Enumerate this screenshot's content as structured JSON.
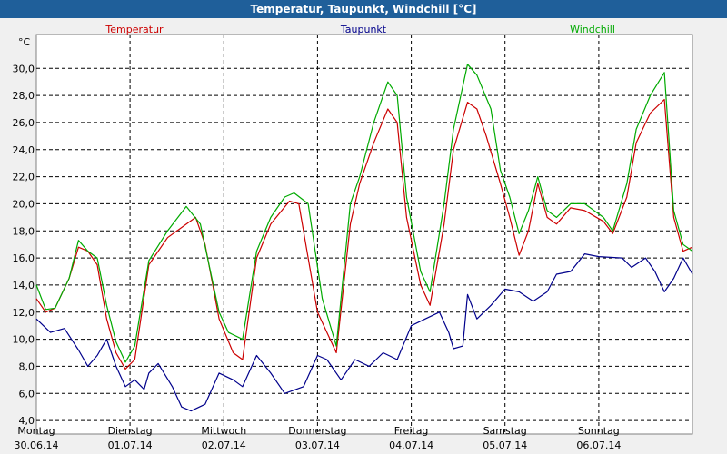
{
  "window": {
    "title": "Temperatur, Taupunkt, Windchill [°C]"
  },
  "chart_data": {
    "type": "line",
    "title": "Temperatur, Taupunkt, Windchill [°C]",
    "ylabel": "°C",
    "ylim": [
      3.0,
      32.5
    ],
    "y_ticks": [
      4.0,
      6.0,
      8.0,
      10.0,
      12.0,
      14.0,
      16.0,
      18.0,
      20.0,
      22.0,
      24.0,
      26.0,
      28.0,
      30.0
    ],
    "y_tick_labels": [
      "4,0",
      "6,0",
      "8,0",
      "10,0",
      "12,0",
      "14,0",
      "16,0",
      "18,0",
      "20,0",
      "22,0",
      "24,0",
      "26,0",
      "28,0",
      "30,0"
    ],
    "xlim": [
      0,
      7
    ],
    "x_ticks": [
      {
        "x": 0,
        "day": "Montag",
        "date": "30.06.14"
      },
      {
        "x": 1,
        "day": "Dienstag",
        "date": "01.07.14"
      },
      {
        "x": 2,
        "day": "Mittwoch",
        "date": "02.07.14"
      },
      {
        "x": 3,
        "day": "Donnerstag",
        "date": "03.07.14"
      },
      {
        "x": 4,
        "day": "Freitag",
        "date": "04.07.14"
      },
      {
        "x": 5,
        "day": "Samstag",
        "date": "05.07.14"
      },
      {
        "x": 6,
        "day": "Sonntag",
        "date": "06.07.14"
      }
    ],
    "grid": true,
    "series": [
      {
        "name": "Temperatur",
        "color": "#cc0000",
        "points": [
          [
            0,
            13.0
          ],
          [
            0.1,
            12.0
          ],
          [
            0.2,
            12.3
          ],
          [
            0.35,
            14.5
          ],
          [
            0.45,
            16.8
          ],
          [
            0.55,
            16.5
          ],
          [
            0.65,
            15.5
          ],
          [
            0.75,
            11.5
          ],
          [
            0.85,
            9.0
          ],
          [
            0.95,
            7.8
          ],
          [
            1.05,
            8.5
          ],
          [
            1.2,
            15.5
          ],
          [
            1.4,
            17.5
          ],
          [
            1.7,
            19.0
          ],
          [
            1.8,
            17.0
          ],
          [
            1.95,
            11.5
          ],
          [
            2.1,
            9.0
          ],
          [
            2.2,
            8.5
          ],
          [
            2.35,
            16.0
          ],
          [
            2.5,
            18.5
          ],
          [
            2.7,
            20.2
          ],
          [
            2.8,
            20.0
          ],
          [
            3.0,
            12.0
          ],
          [
            3.2,
            9.0
          ],
          [
            3.35,
            18.5
          ],
          [
            3.45,
            21.5
          ],
          [
            3.6,
            24.5
          ],
          [
            3.75,
            27.0
          ],
          [
            3.85,
            26.0
          ],
          [
            3.95,
            19.0
          ],
          [
            4.1,
            14.0
          ],
          [
            4.2,
            12.5
          ],
          [
            4.35,
            18.5
          ],
          [
            4.45,
            24.0
          ],
          [
            4.6,
            27.5
          ],
          [
            4.7,
            27.0
          ],
          [
            4.8,
            25.0
          ],
          [
            4.95,
            21.5
          ],
          [
            5.05,
            19.0
          ],
          [
            5.15,
            16.2
          ],
          [
            5.25,
            18.0
          ],
          [
            5.35,
            21.5
          ],
          [
            5.45,
            19.0
          ],
          [
            5.55,
            18.5
          ],
          [
            5.7,
            19.7
          ],
          [
            5.85,
            19.5
          ],
          [
            6.05,
            18.7
          ],
          [
            6.15,
            17.8
          ],
          [
            6.3,
            20.5
          ],
          [
            6.4,
            24.5
          ],
          [
            6.55,
            26.7
          ],
          [
            6.7,
            27.7
          ],
          [
            6.8,
            19.0
          ],
          [
            6.9,
            16.5
          ],
          [
            7.0,
            16.8
          ]
        ]
      },
      {
        "name": "Taupunkt",
        "color": "#00008b",
        "points": [
          [
            0,
            11.5
          ],
          [
            0.15,
            10.5
          ],
          [
            0.3,
            10.8
          ],
          [
            0.45,
            9.2
          ],
          [
            0.55,
            8.0
          ],
          [
            0.65,
            8.8
          ],
          [
            0.75,
            10.0
          ],
          [
            0.85,
            8.0
          ],
          [
            0.95,
            6.5
          ],
          [
            1.05,
            7.0
          ],
          [
            1.15,
            6.3
          ],
          [
            1.2,
            7.5
          ],
          [
            1.3,
            8.2
          ],
          [
            1.45,
            6.5
          ],
          [
            1.55,
            5.0
          ],
          [
            1.65,
            4.7
          ],
          [
            1.8,
            5.2
          ],
          [
            1.95,
            7.5
          ],
          [
            2.1,
            7.0
          ],
          [
            2.2,
            6.5
          ],
          [
            2.35,
            8.8
          ],
          [
            2.5,
            7.5
          ],
          [
            2.65,
            6.0
          ],
          [
            2.85,
            6.5
          ],
          [
            3.0,
            8.8
          ],
          [
            3.1,
            8.5
          ],
          [
            3.25,
            7.0
          ],
          [
            3.4,
            8.5
          ],
          [
            3.55,
            8.0
          ],
          [
            3.7,
            9.0
          ],
          [
            3.85,
            8.5
          ],
          [
            4.0,
            11.0
          ],
          [
            4.15,
            11.5
          ],
          [
            4.3,
            12.0
          ],
          [
            4.4,
            10.5
          ],
          [
            4.45,
            9.3
          ],
          [
            4.55,
            9.5
          ],
          [
            4.6,
            13.3
          ],
          [
            4.7,
            11.5
          ],
          [
            4.85,
            12.5
          ],
          [
            5.0,
            13.7
          ],
          [
            5.15,
            13.5
          ],
          [
            5.3,
            12.8
          ],
          [
            5.45,
            13.5
          ],
          [
            5.55,
            14.8
          ],
          [
            5.7,
            15.0
          ],
          [
            5.85,
            16.3
          ],
          [
            6.0,
            16.1
          ],
          [
            6.25,
            16.0
          ],
          [
            6.35,
            15.3
          ],
          [
            6.5,
            16.0
          ],
          [
            6.6,
            15.0
          ],
          [
            6.7,
            13.5
          ],
          [
            6.8,
            14.5
          ],
          [
            6.9,
            16.0
          ],
          [
            7.0,
            14.8
          ]
        ]
      },
      {
        "name": "Windchill",
        "color": "#00aa00",
        "points": [
          [
            0,
            14.0
          ],
          [
            0.1,
            12.2
          ],
          [
            0.2,
            12.3
          ],
          [
            0.35,
            14.5
          ],
          [
            0.45,
            17.3
          ],
          [
            0.55,
            16.5
          ],
          [
            0.65,
            16.0
          ],
          [
            0.75,
            12.5
          ],
          [
            0.85,
            9.8
          ],
          [
            0.95,
            8.3
          ],
          [
            1.05,
            9.5
          ],
          [
            1.2,
            15.8
          ],
          [
            1.4,
            18.0
          ],
          [
            1.6,
            19.8
          ],
          [
            1.75,
            18.5
          ],
          [
            1.95,
            12.0
          ],
          [
            2.05,
            10.5
          ],
          [
            2.2,
            10.0
          ],
          [
            2.35,
            16.5
          ],
          [
            2.5,
            19.0
          ],
          [
            2.65,
            20.5
          ],
          [
            2.75,
            20.8
          ],
          [
            2.9,
            20.0
          ],
          [
            3.05,
            13.0
          ],
          [
            3.2,
            9.5
          ],
          [
            3.35,
            20.0
          ],
          [
            3.45,
            22.0
          ],
          [
            3.6,
            26.0
          ],
          [
            3.75,
            29.0
          ],
          [
            3.85,
            28.0
          ],
          [
            3.95,
            20.5
          ],
          [
            4.1,
            15.0
          ],
          [
            4.2,
            13.5
          ],
          [
            4.35,
            20.0
          ],
          [
            4.45,
            25.5
          ],
          [
            4.6,
            30.3
          ],
          [
            4.7,
            29.5
          ],
          [
            4.85,
            27.0
          ],
          [
            4.95,
            22.5
          ],
          [
            5.05,
            20.5
          ],
          [
            5.15,
            17.8
          ],
          [
            5.25,
            19.5
          ],
          [
            5.35,
            22.0
          ],
          [
            5.45,
            19.5
          ],
          [
            5.55,
            19.0
          ],
          [
            5.7,
            20.0
          ],
          [
            5.85,
            20.0
          ],
          [
            6.05,
            19.0
          ],
          [
            6.15,
            18.0
          ],
          [
            6.3,
            21.5
          ],
          [
            6.4,
            25.5
          ],
          [
            6.55,
            28.0
          ],
          [
            6.7,
            29.7
          ],
          [
            6.8,
            19.5
          ],
          [
            6.9,
            17.0
          ],
          [
            7.0,
            16.5
          ]
        ]
      }
    ]
  }
}
